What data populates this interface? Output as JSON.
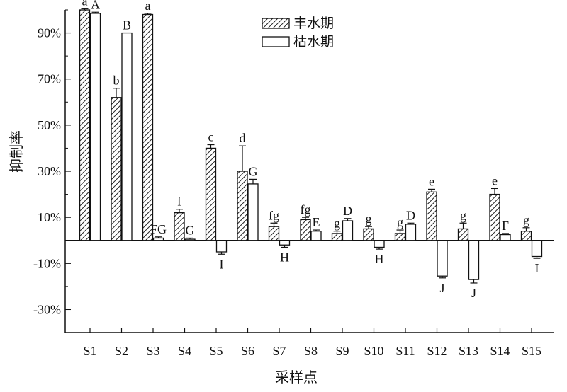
{
  "chart_data": {
    "type": "bar",
    "ylabel": "抑制率",
    "xlabel": "采样点",
    "ylim": [
      -40,
      100
    ],
    "yticks": [
      "-30%",
      "-10%",
      "10%",
      "30%",
      "50%",
      "70%",
      "90%"
    ],
    "ytick_values": [
      -30,
      -10,
      10,
      30,
      50,
      70,
      90
    ],
    "categories": [
      "S1",
      "S2",
      "S3",
      "S4",
      "S5",
      "S6",
      "S7",
      "S8",
      "S9",
      "S10",
      "S11",
      "S12",
      "S13",
      "S14",
      "S15"
    ],
    "legend_position": "top-center",
    "series": [
      {
        "name": "丰水期",
        "pattern": "hatched",
        "values": [
          100,
          62,
          98,
          12,
          40,
          30,
          6,
          9,
          3,
          5,
          3,
          21,
          5,
          20,
          4
        ],
        "errors": [
          0.5,
          4,
          0.5,
          1.5,
          1.5,
          11,
          1.5,
          1,
          1,
          1,
          1.5,
          1.2,
          2.5,
          2.5,
          1.5
        ],
        "letters": [
          "a",
          "b",
          "a",
          "f",
          "c",
          "d",
          "fg",
          "fg",
          "g",
          "g",
          "g",
          "e",
          "g",
          "e",
          "g"
        ]
      },
      {
        "name": "枯水期",
        "pattern": "white",
        "values": [
          98.5,
          90,
          1,
          0.5,
          -5,
          24.5,
          -2,
          4,
          8.5,
          -3,
          7,
          -15.5,
          -17,
          2.5,
          -7
        ],
        "errors": [
          0.5,
          0,
          0.5,
          0.5,
          1,
          2,
          1,
          0.5,
          1,
          0.8,
          0.5,
          0.8,
          1.5,
          0.5,
          0.8
        ],
        "letters": [
          "A",
          "B",
          "FG",
          "G",
          "I",
          "G",
          "H",
          "E",
          "D",
          "H",
          "D",
          "J",
          "J",
          "F",
          "I"
        ]
      }
    ]
  }
}
